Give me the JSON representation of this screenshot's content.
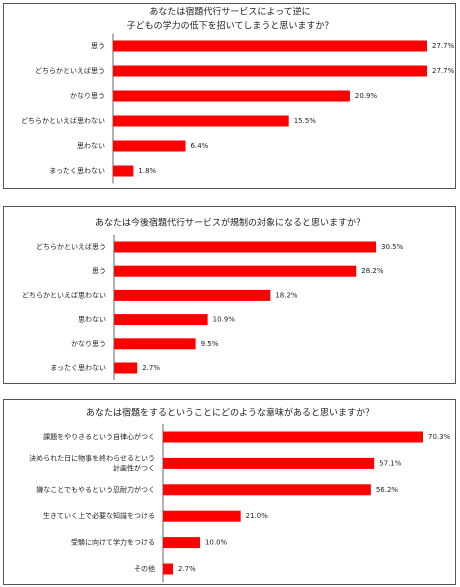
{
  "chart_data": [
    {
      "type": "bar",
      "orientation": "horizontal",
      "color": "#ff0000",
      "title": [
        "あなたは宿題代行サービスによって逆に",
        "子どもの学力の低下を招いてしまうと思いますか？"
      ],
      "categories": [
        "思う",
        "どちらかといえば思う",
        "かなり思う",
        "どちらかといえば思わない",
        "思わない",
        "まったく思わない"
      ],
      "values": [
        27.7,
        27.7,
        20.9,
        15.5,
        6.4,
        1.8
      ],
      "value_labels": [
        "27.7%",
        "27.7%",
        "20.9%",
        "15.5%",
        "6.4%",
        "1.8%"
      ]
    },
    {
      "type": "bar",
      "orientation": "horizontal",
      "color": "#ff0000",
      "title": [
        "あなたは今後宿題代行サービスが規制の対象になると思いますか？"
      ],
      "categories": [
        "どちらかといえば思う",
        "思う",
        "どちらかといえば思わない",
        "思わない",
        "かなり思う",
        "まったく思わない"
      ],
      "values": [
        30.5,
        28.2,
        18.2,
        10.9,
        9.5,
        2.7
      ],
      "value_labels": [
        "30.5%",
        "28.2%",
        "18.2%",
        "10.9%",
        "9.5%",
        "2.7%"
      ]
    },
    {
      "type": "bar",
      "orientation": "horizontal",
      "color": "#ff0000",
      "title": [
        "あなたは宿題をするということにどのような意味があると思いますか？"
      ],
      "categories": [
        "課題をやりきるという自律心がつく",
        [
          "決められた日に物事を終わらせるという",
          "計画性がつく"
        ],
        "嫌なことでもやるという忍耐力がつく",
        "生きていく上で必要な知識をつける",
        "受験に向けて学力をつける",
        "その他"
      ],
      "values": [
        70.3,
        57.1,
        56.2,
        21.0,
        10.0,
        2.7
      ],
      "value_labels": [
        "70.3%",
        "57.1%",
        "56.2%",
        "21.0%",
        "10.0%",
        "2.7%"
      ]
    }
  ]
}
